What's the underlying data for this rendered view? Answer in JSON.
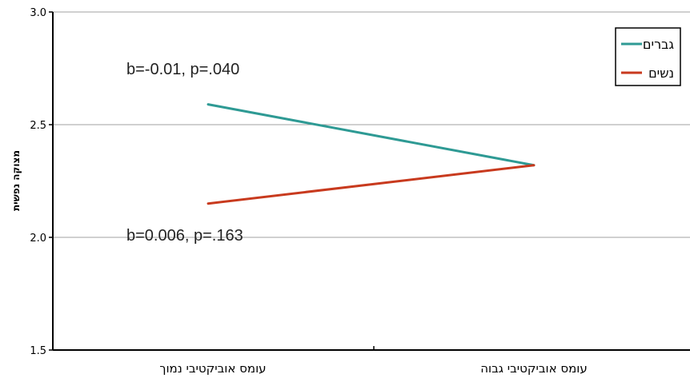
{
  "chart_data": {
    "type": "line",
    "categories": [
      "עומס אוביקטיבי נמוך",
      "עומס אוביקטיבי גבוה"
    ],
    "series": [
      {
        "name": "גברים",
        "values": [
          2.59,
          2.32
        ],
        "color": "#2e9a94"
      },
      {
        "name": "נשים",
        "values": [
          2.15,
          2.32
        ],
        "color": "#c83a1e"
      }
    ],
    "ylabel": "מצוקה נפשית",
    "xlabel": "",
    "ylim": [
      1.5,
      3.0
    ],
    "yticks": [
      "1.5",
      "2.0",
      "2.5",
      "3.0"
    ],
    "grid": true,
    "legend_position": "top-right",
    "annotations": [
      "b=-0.01, p=.040",
      "b=0.006, p=.163"
    ]
  }
}
